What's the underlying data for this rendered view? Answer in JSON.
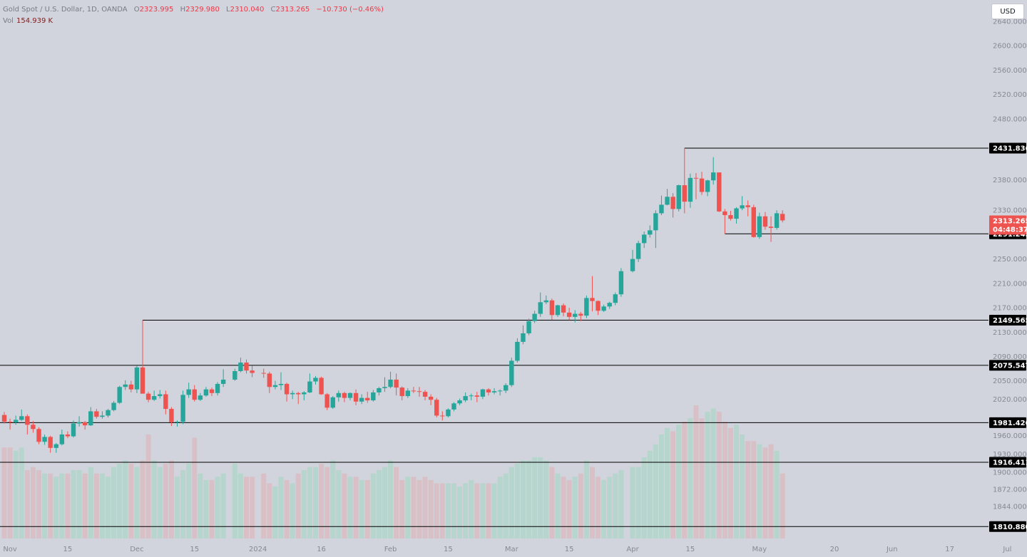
{
  "legend": {
    "symbol": "Gold Spot / U.S. Dollar, 1D, OANDA",
    "o_label": "O",
    "open": "2323.995",
    "h_label": "H",
    "high": "2329.980",
    "l_label": "L",
    "low": "2310.040",
    "c_label": "C",
    "close": "2313.265",
    "change": "−10.730 (−0.46%)",
    "vol_label": "Vol",
    "vol_value": "154.939 K"
  },
  "currency_button": "USD",
  "last_price": {
    "value": "2313.265",
    "countdown": "04:48:37"
  },
  "colors": {
    "up": "#26a69a",
    "down": "#ef5350",
    "background": "#d1d4dc",
    "line": "#000000",
    "up_volume": "#b6d5cc",
    "down_volume": "#d9c0c6"
  },
  "chart_data": {
    "type": "candlestick",
    "price_range": [
      1810.88,
      2680
    ],
    "y_ticks": [
      "2640.000",
      "2600.000",
      "2560.000",
      "2520.000",
      "2480.000",
      "2380.000",
      "2330.000",
      "2250.000",
      "2210.000",
      "2170.000",
      "2130.000",
      "2090.000",
      "2050.000",
      "2020.000",
      "1960.000",
      "1930.000",
      "1900.000",
      "1872.000",
      "1844.000"
    ],
    "x_labels": [
      {
        "label": "Nov",
        "date": "2023-11-01"
      },
      {
        "label": "15",
        "date": "2023-11-15"
      },
      {
        "label": "Dec",
        "date": "2023-12-01"
      },
      {
        "label": "15",
        "date": "2023-12-15"
      },
      {
        "label": "2024",
        "date": "2024-01-01"
      },
      {
        "label": "16",
        "date": "2024-01-16"
      },
      {
        "label": "Feb",
        "date": "2024-02-01"
      },
      {
        "label": "15",
        "date": "2024-02-15"
      },
      {
        "label": "Mar",
        "date": "2024-03-01"
      },
      {
        "label": "15",
        "date": "2024-03-15"
      },
      {
        "label": "Apr",
        "date": "2024-04-01"
      },
      {
        "label": "15",
        "date": "2024-04-15"
      },
      {
        "label": "May",
        "date": "2024-05-01"
      },
      {
        "label": "20",
        "date": "2024-05-20"
      },
      {
        "label": "Jun",
        "date": "2024-06-01"
      },
      {
        "label": "17",
        "date": "2024-06-17"
      },
      {
        "label": "Jul",
        "date": "2024-07-01"
      }
    ],
    "horizontal_levels": [
      {
        "price": 2431.836,
        "label": "2431.836",
        "start_date": "2024-04-12"
      },
      {
        "price": 2291.245,
        "label": "2291.245",
        "start_date": "2024-04-23"
      },
      {
        "price": 2149.565,
        "label": "2149.565",
        "start_date": "2023-12-04"
      },
      {
        "price": 2075.547,
        "label": "2075.547",
        "start_date": null
      },
      {
        "price": 1981.426,
        "label": "1981.426",
        "start_date": null
      },
      {
        "price": 1916.411,
        "label": "1916.411",
        "start_date": null
      },
      {
        "price": 1810.88,
        "label": "1810.880",
        "start_date": null
      }
    ],
    "candles": [
      [
        "2023-10-31",
        1994,
        1999,
        1980,
        1983
      ],
      [
        "2023-11-01",
        1983,
        1988,
        1970,
        1982
      ],
      [
        "2023-11-02",
        1982,
        1993,
        1978,
        1986
      ],
      [
        "2023-11-03",
        1986,
        2003,
        1984,
        1992
      ],
      [
        "2023-11-06",
        1992,
        1995,
        1962,
        1978
      ],
      [
        "2023-11-07",
        1978,
        1984,
        1965,
        1971
      ],
      [
        "2023-11-08",
        1971,
        1974,
        1946,
        1950
      ],
      [
        "2023-11-09",
        1950,
        1962,
        1945,
        1958
      ],
      [
        "2023-11-10",
        1958,
        1960,
        1932,
        1940
      ],
      [
        "2023-11-13",
        1940,
        1948,
        1932,
        1946
      ],
      [
        "2023-11-14",
        1946,
        1970,
        1944,
        1962
      ],
      [
        "2023-11-15",
        1962,
        1967,
        1956,
        1959
      ],
      [
        "2023-11-16",
        1959,
        1985,
        1957,
        1980
      ],
      [
        "2023-11-17",
        1980,
        1992,
        1975,
        1982
      ],
      [
        "2023-11-20",
        1982,
        1984,
        1970,
        1977
      ],
      [
        "2023-11-21",
        1977,
        2007,
        1976,
        2000
      ],
      [
        "2023-11-22",
        2000,
        2004,
        1988,
        1991
      ],
      [
        "2023-11-23",
        1991,
        2000,
        1988,
        1993
      ],
      [
        "2023-11-24",
        1993,
        2004,
        1990,
        2002
      ],
      [
        "2023-11-27",
        2002,
        2017,
        2000,
        2014
      ],
      [
        "2023-11-28",
        2014,
        2042,
        2012,
        2040
      ],
      [
        "2023-11-29",
        2040,
        2051,
        2035,
        2044
      ],
      [
        "2023-11-30",
        2044,
        2050,
        2031,
        2036
      ],
      [
        "2023-12-01",
        2036,
        2075,
        2030,
        2072
      ],
      [
        "2023-12-04",
        2072,
        2149.565,
        2030,
        2029
      ],
      [
        "2023-12-05",
        2029,
        2032,
        2015,
        2019
      ],
      [
        "2023-12-06",
        2019,
        2034,
        2017,
        2025
      ],
      [
        "2023-12-07",
        2025,
        2035,
        2021,
        2028
      ],
      [
        "2023-12-08",
        2028,
        2034,
        1995,
        2004
      ],
      [
        "2023-12-11",
        2004,
        2007,
        1976,
        1982
      ],
      [
        "2023-12-12",
        1982,
        1985,
        1975,
        1983
      ],
      [
        "2023-12-13",
        1983,
        2034,
        1979,
        2027
      ],
      [
        "2023-12-14",
        2027,
        2047,
        2022,
        2036
      ],
      [
        "2023-12-15",
        2036,
        2043,
        2016,
        2019
      ],
      [
        "2023-12-18",
        2019,
        2030,
        2017,
        2026
      ],
      [
        "2023-12-19",
        2026,
        2040,
        2024,
        2036
      ],
      [
        "2023-12-20",
        2036,
        2039,
        2025,
        2030
      ],
      [
        "2023-12-21",
        2030,
        2048,
        2026,
        2045
      ],
      [
        "2023-12-22",
        2045,
        2069,
        2040,
        2052
      ],
      [
        "2023-12-26",
        2052,
        2070,
        2050,
        2066
      ],
      [
        "2023-12-27",
        2066,
        2088,
        2064,
        2080
      ],
      [
        "2023-12-28",
        2080,
        2085,
        2062,
        2067
      ],
      [
        "2023-12-29",
        2067,
        2075,
        2056,
        2063
      ],
      [
        "2024-01-02",
        2063,
        2070,
        2055,
        2062
      ],
      [
        "2024-01-03",
        2062,
        2065,
        2030,
        2040
      ],
      [
        "2024-01-04",
        2040,
        2050,
        2036,
        2043
      ],
      [
        "2024-01-05",
        2043,
        2064,
        2035,
        2045
      ],
      [
        "2024-01-08",
        2045,
        2047,
        2016,
        2028
      ],
      [
        "2024-01-09",
        2028,
        2034,
        2020,
        2030
      ],
      [
        "2024-01-10",
        2030,
        2032,
        2012,
        2028
      ],
      [
        "2024-01-11",
        2028,
        2033,
        2018,
        2031
      ],
      [
        "2024-01-12",
        2031,
        2062,
        2030,
        2049
      ],
      [
        "2024-01-15",
        2049,
        2058,
        2044,
        2055
      ],
      [
        "2024-01-16",
        2055,
        2057,
        2027,
        2028
      ],
      [
        "2024-01-17",
        2028,
        2030,
        2002,
        2006
      ],
      [
        "2024-01-18",
        2006,
        2025,
        2004,
        2023
      ],
      [
        "2024-01-19",
        2023,
        2034,
        2016,
        2030
      ],
      [
        "2024-01-22",
        2030,
        2032,
        2015,
        2022
      ],
      [
        "2024-01-23",
        2022,
        2031,
        2018,
        2030
      ],
      [
        "2024-01-24",
        2030,
        2036,
        2010,
        2016
      ],
      [
        "2024-01-25",
        2016,
        2028,
        2012,
        2022
      ],
      [
        "2024-01-26",
        2022,
        2032,
        2014,
        2018
      ],
      [
        "2024-01-29",
        2018,
        2035,
        2016,
        2031
      ],
      [
        "2024-01-30",
        2031,
        2040,
        2026,
        2038
      ],
      [
        "2024-01-31",
        2038,
        2056,
        2032,
        2040
      ],
      [
        "2024-02-01",
        2040,
        2065,
        2038,
        2052
      ],
      [
        "2024-02-02",
        2052,
        2062,
        2026,
        2039
      ],
      [
        "2024-02-05",
        2039,
        2041,
        2018,
        2025
      ],
      [
        "2024-02-06",
        2025,
        2038,
        2022,
        2034
      ],
      [
        "2024-02-07",
        2034,
        2040,
        2030,
        2033
      ],
      [
        "2024-02-08",
        2033,
        2040,
        2024,
        2032
      ],
      [
        "2024-02-09",
        2032,
        2035,
        2018,
        2024
      ],
      [
        "2024-02-12",
        2024,
        2028,
        2010,
        2019
      ],
      [
        "2024-02-13",
        2019,
        2022,
        1990,
        1993
      ],
      [
        "2024-02-14",
        1993,
        2000,
        1985,
        1992
      ],
      [
        "2024-02-15",
        1992,
        2005,
        1990,
        2003
      ],
      [
        "2024-02-16",
        2003,
        2015,
        2000,
        2013
      ],
      [
        "2024-02-19",
        2013,
        2021,
        2010,
        2018
      ],
      [
        "2024-02-20",
        2018,
        2031,
        2015,
        2025
      ],
      [
        "2024-02-21",
        2025,
        2029,
        2018,
        2026
      ],
      [
        "2024-02-22",
        2026,
        2032,
        2015,
        2024
      ],
      [
        "2024-02-23",
        2024,
        2037,
        2020,
        2036
      ],
      [
        "2024-02-26",
        2036,
        2038,
        2026,
        2031
      ],
      [
        "2024-02-27",
        2031,
        2038,
        2028,
        2033
      ],
      [
        "2024-02-28",
        2033,
        2036,
        2026,
        2034
      ],
      [
        "2024-02-29",
        2034,
        2046,
        2030,
        2043
      ],
      [
        "2024-03-01",
        2043,
        2088,
        2040,
        2083
      ],
      [
        "2024-03-04",
        2083,
        2120,
        2080,
        2114
      ],
      [
        "2024-03-05",
        2114,
        2141,
        2110,
        2128
      ],
      [
        "2024-03-06",
        2128,
        2152,
        2125,
        2148
      ],
      [
        "2024-03-07",
        2148,
        2165,
        2145,
        2160
      ],
      [
        "2024-03-08",
        2160,
        2195,
        2155,
        2179
      ],
      [
        "2024-03-11",
        2179,
        2190,
        2176,
        2182
      ],
      [
        "2024-03-12",
        2182,
        2185,
        2150,
        2158
      ],
      [
        "2024-03-13",
        2158,
        2175,
        2155,
        2174
      ],
      [
        "2024-03-14",
        2174,
        2177,
        2156,
        2162
      ],
      [
        "2024-03-15",
        2162,
        2170,
        2150,
        2155
      ],
      [
        "2024-03-18",
        2155,
        2166,
        2146,
        2160
      ],
      [
        "2024-03-19",
        2160,
        2163,
        2148,
        2157
      ],
      [
        "2024-03-20",
        2157,
        2190,
        2153,
        2186
      ],
      [
        "2024-03-21",
        2186,
        2222,
        2164,
        2181
      ],
      [
        "2024-03-22",
        2181,
        2182,
        2158,
        2165
      ],
      [
        "2024-03-25",
        2165,
        2175,
        2163,
        2172
      ],
      [
        "2024-03-26",
        2172,
        2180,
        2168,
        2178
      ],
      [
        "2024-03-27",
        2178,
        2195,
        2174,
        2192
      ],
      [
        "2024-03-28",
        2192,
        2235,
        2188,
        2230
      ],
      [
        "2024-04-01",
        2230,
        2265,
        2228,
        2250
      ],
      [
        "2024-04-02",
        2250,
        2280,
        2245,
        2276
      ],
      [
        "2024-04-03",
        2276,
        2295,
        2268,
        2290
      ],
      [
        "2024-04-04",
        2290,
        2305,
        2285,
        2297
      ],
      [
        "2024-04-05",
        2297,
        2330,
        2268,
        2325
      ],
      [
        "2024-04-08",
        2325,
        2354,
        2322,
        2339
      ],
      [
        "2024-04-09",
        2339,
        2365,
        2338,
        2352
      ],
      [
        "2024-04-10",
        2352,
        2358,
        2318,
        2332
      ],
      [
        "2024-04-11",
        2332,
        2372,
        2328,
        2371
      ],
      [
        "2024-04-12",
        2371,
        2431.836,
        2325,
        2344
      ],
      [
        "2024-04-15",
        2344,
        2390,
        2334,
        2383
      ],
      [
        "2024-04-16",
        2383,
        2391,
        2348,
        2382
      ],
      [
        "2024-04-17",
        2382,
        2393,
        2355,
        2360
      ],
      [
        "2024-04-18",
        2360,
        2380,
        2353,
        2379
      ],
      [
        "2024-04-19",
        2379,
        2417,
        2372,
        2392
      ],
      [
        "2024-04-22",
        2392,
        2392,
        2327,
        2328
      ],
      [
        "2024-04-23",
        2328,
        2332,
        2291.245,
        2322
      ],
      [
        "2024-04-24",
        2322,
        2329,
        2313,
        2316
      ],
      [
        "2024-04-25",
        2316,
        2335,
        2308,
        2333
      ],
      [
        "2024-04-26",
        2333,
        2353,
        2330,
        2338
      ],
      [
        "2024-04-29",
        2338,
        2346,
        2320,
        2335
      ],
      [
        "2024-04-30",
        2335,
        2339,
        2285,
        2286
      ],
      [
        "2024-05-01",
        2286,
        2326,
        2283,
        2320
      ],
      [
        "2024-05-02",
        2320,
        2327,
        2298,
        2303
      ],
      [
        "2024-05-03",
        2303,
        2320,
        2278,
        2301
      ],
      [
        "2024-05-06",
        2301,
        2330,
        2298,
        2325
      ],
      [
        "2024-05-07",
        2323.995,
        2329.98,
        2310.04,
        2313.265
      ]
    ],
    "volume": [
      28,
      28,
      27,
      28,
      21,
      22,
      21,
      20,
      20,
      19,
      20,
      20,
      21,
      21,
      20,
      22,
      20,
      20,
      19,
      22,
      23,
      24,
      23,
      22,
      24,
      32,
      24,
      22,
      23,
      24,
      19,
      21,
      23,
      31,
      20,
      18,
      18,
      19,
      20,
      23,
      20,
      19,
      19,
      20,
      17,
      16,
      19,
      18,
      17,
      20,
      21,
      22,
      22,
      23,
      22,
      24,
      21,
      20,
      19,
      19,
      18,
      18,
      20,
      21,
      22,
      24,
      22,
      18,
      19,
      19,
      18,
      19,
      18,
      17,
      17,
      17,
      17,
      16,
      17,
      18,
      17,
      17,
      17,
      17,
      19,
      20,
      22,
      23,
      24,
      24,
      25,
      25,
      24,
      22,
      20,
      19,
      18,
      19,
      20,
      24,
      22,
      19,
      18,
      19,
      20,
      21,
      22,
      22,
      25,
      27,
      29,
      32,
      34,
      33,
      35,
      36,
      37,
      41,
      37,
      39,
      40,
      39,
      36,
      34,
      35,
      32,
      30,
      30,
      29,
      28,
      29,
      27,
      20
    ]
  }
}
